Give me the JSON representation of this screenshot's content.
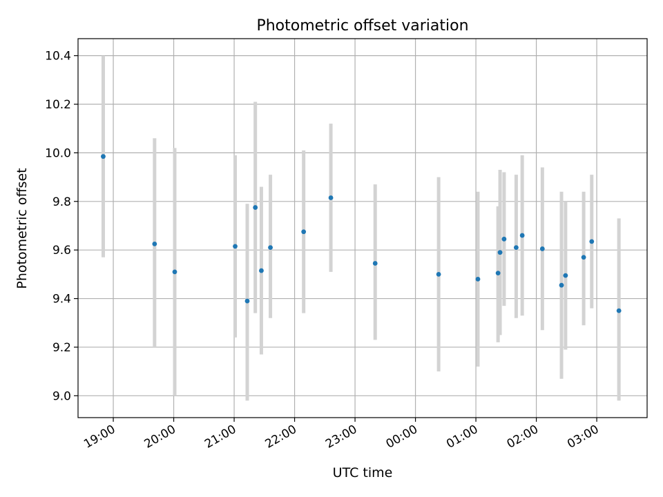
{
  "chart_data": {
    "type": "scatter",
    "title": "Photometric offset variation",
    "xlabel": "UTC time",
    "ylabel": "Photometric offset",
    "grid": true,
    "x_axis_type": "time",
    "x_range": [
      "18:25",
      "03:50"
    ],
    "ylim": [
      8.91,
      10.47
    ],
    "x_ticks": [
      "19:00",
      "20:00",
      "21:00",
      "22:00",
      "23:00",
      "00:00",
      "01:00",
      "02:00",
      "03:00"
    ],
    "y_ticks": [
      9.0,
      9.2,
      9.4,
      9.6,
      9.8,
      10.0,
      10.2,
      10.4
    ],
    "y_tick_labels": [
      "9.0",
      "9.2",
      "9.4",
      "9.6",
      "9.8",
      "10.0",
      "10.2",
      "10.4"
    ],
    "marker_color": "#1f77b4",
    "errorbar_color": "#d3d3d3",
    "points": [
      {
        "time": "18:50",
        "y": 9.985,
        "ylow": 9.57,
        "yhigh": 10.4
      },
      {
        "time": "19:41",
        "y": 9.625,
        "ylow": 9.2,
        "yhigh": 10.06
      },
      {
        "time": "20:01",
        "y": 9.51,
        "ylow": 9.0,
        "yhigh": 10.02
      },
      {
        "time": "21:01",
        "y": 9.615,
        "ylow": 9.24,
        "yhigh": 9.99
      },
      {
        "time": "21:13",
        "y": 9.39,
        "ylow": 8.98,
        "yhigh": 9.79
      },
      {
        "time": "21:21",
        "y": 9.775,
        "ylow": 9.34,
        "yhigh": 10.21
      },
      {
        "time": "21:27",
        "y": 9.515,
        "ylow": 9.17,
        "yhigh": 9.86
      },
      {
        "time": "21:36",
        "y": 9.61,
        "ylow": 9.32,
        "yhigh": 9.91
      },
      {
        "time": "22:09",
        "y": 9.675,
        "ylow": 9.34,
        "yhigh": 10.01
      },
      {
        "time": "22:36",
        "y": 9.815,
        "ylow": 9.51,
        "yhigh": 10.12
      },
      {
        "time": "23:20",
        "y": 9.545,
        "ylow": 9.23,
        "yhigh": 9.87
      },
      {
        "time": "00:23",
        "y": 9.5,
        "ylow": 9.1,
        "yhigh": 9.9
      },
      {
        "time": "01:02",
        "y": 9.48,
        "ylow": 9.12,
        "yhigh": 9.84
      },
      {
        "time": "01:22",
        "y": 9.505,
        "ylow": 9.22,
        "yhigh": 9.78
      },
      {
        "time": "01:24",
        "y": 9.59,
        "ylow": 9.25,
        "yhigh": 9.93
      },
      {
        "time": "01:28",
        "y": 9.645,
        "ylow": 9.37,
        "yhigh": 9.92
      },
      {
        "time": "01:40",
        "y": 9.61,
        "ylow": 9.32,
        "yhigh": 9.91
      },
      {
        "time": "01:46",
        "y": 9.66,
        "ylow": 9.33,
        "yhigh": 9.99
      },
      {
        "time": "02:06",
        "y": 9.605,
        "ylow": 9.27,
        "yhigh": 9.94
      },
      {
        "time": "02:25",
        "y": 9.455,
        "ylow": 9.07,
        "yhigh": 9.84
      },
      {
        "time": "02:29",
        "y": 9.495,
        "ylow": 9.19,
        "yhigh": 9.8
      },
      {
        "time": "02:47",
        "y": 9.57,
        "ylow": 9.29,
        "yhigh": 9.84
      },
      {
        "time": "02:55",
        "y": 9.635,
        "ylow": 9.36,
        "yhigh": 9.91
      },
      {
        "time": "03:22",
        "y": 9.35,
        "ylow": 8.98,
        "yhigh": 9.73
      }
    ]
  }
}
